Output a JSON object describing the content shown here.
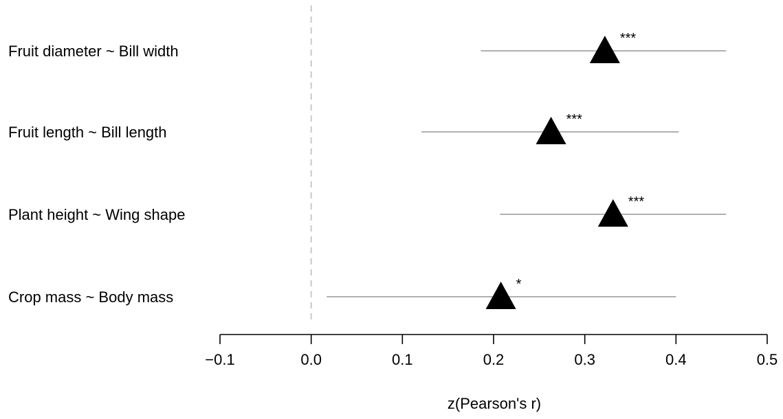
{
  "chart_data": {
    "type": "scatter",
    "title": "",
    "xlabel": "z(Pearson's r)",
    "ylabel": "",
    "xlim": [
      -0.1,
      0.5
    ],
    "xticks": [
      -0.1,
      0.0,
      0.1,
      0.2,
      0.3,
      0.4,
      0.5
    ],
    "xtick_labels": [
      "−0.1",
      "0.0",
      "0.1",
      "0.2",
      "0.3",
      "0.4",
      "0.5"
    ],
    "reference_line": {
      "x": 0.0,
      "style": "dashed"
    },
    "marker": "triangle",
    "grid": false,
    "rows": [
      {
        "label": "Fruit diameter ~ Bill width",
        "estimate": 0.322,
        "lower": 0.186,
        "upper": 0.455,
        "significance": "***"
      },
      {
        "label": "Fruit length ~ Bill length",
        "estimate": 0.263,
        "lower": 0.121,
        "upper": 0.403,
        "significance": "***"
      },
      {
        "label": "Plant height ~ Wing shape",
        "estimate": 0.331,
        "lower": 0.207,
        "upper": 0.455,
        "significance": "***"
      },
      {
        "label": "Crop mass ~ Body mass",
        "estimate": 0.208,
        "lower": 0.017,
        "upper": 0.4,
        "significance": "*"
      }
    ]
  }
}
